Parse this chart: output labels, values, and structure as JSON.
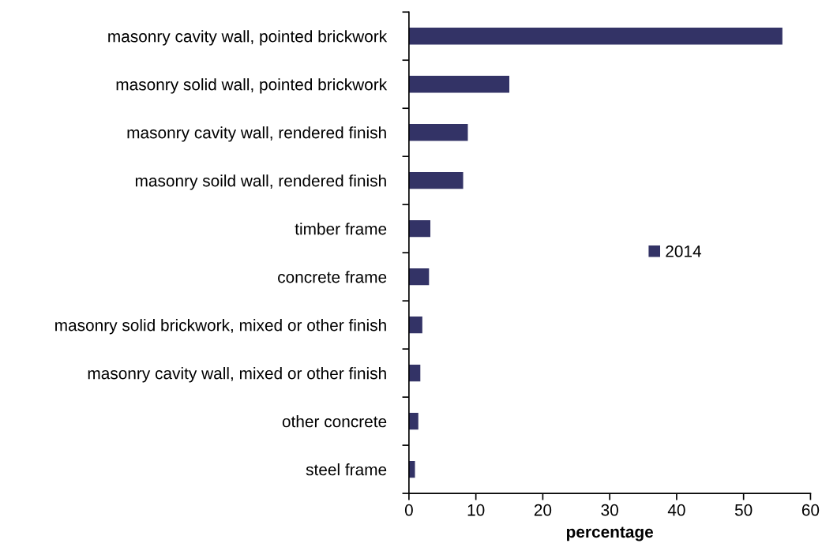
{
  "chart_data": {
    "type": "bar",
    "orientation": "horizontal",
    "xlabel": "percentage",
    "categories": [
      "masonry cavity wall, pointed brickwork",
      "masonry solid wall, pointed brickwork",
      "masonry cavity wall, rendered finish",
      "masonry soild wall, rendered finish",
      "timber frame",
      "concrete frame",
      "masonry solid brickwork, mixed or other finish",
      "masonry cavity wall, mixed or other finish",
      "other concrete",
      "steel frame"
    ],
    "series": [
      {
        "name": "2014",
        "color": "#333366",
        "values": [
          55.8,
          15.0,
          8.8,
          8.1,
          3.2,
          3.0,
          2.0,
          1.7,
          1.4,
          0.9
        ]
      }
    ],
    "xlim": [
      0,
      60
    ],
    "xticks": [
      0,
      10,
      20,
      30,
      40,
      50,
      60
    ],
    "grid": false,
    "legend": "right"
  }
}
